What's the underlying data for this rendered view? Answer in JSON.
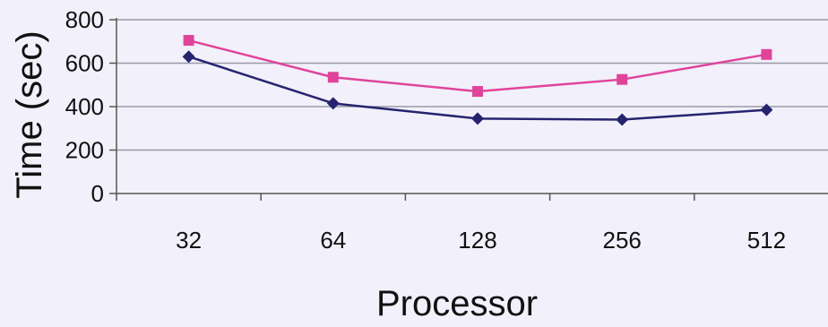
{
  "chart_data": {
    "type": "line",
    "categories": [
      "32",
      "64",
      "128",
      "256",
      "512"
    ],
    "series": [
      {
        "values": [
          705,
          535,
          470,
          525,
          640
        ],
        "color": "#e0449a",
        "marker": "square"
      },
      {
        "values": [
          630,
          415,
          345,
          340,
          385
        ],
        "color": "#26246e",
        "marker": "diamond"
      }
    ],
    "xlabel": "Processor",
    "ylabel": "Time (sec)",
    "ylim": [
      0,
      800
    ],
    "yticks": [
      0,
      200,
      400,
      600,
      800
    ],
    "grid": true,
    "legend": "none"
  }
}
